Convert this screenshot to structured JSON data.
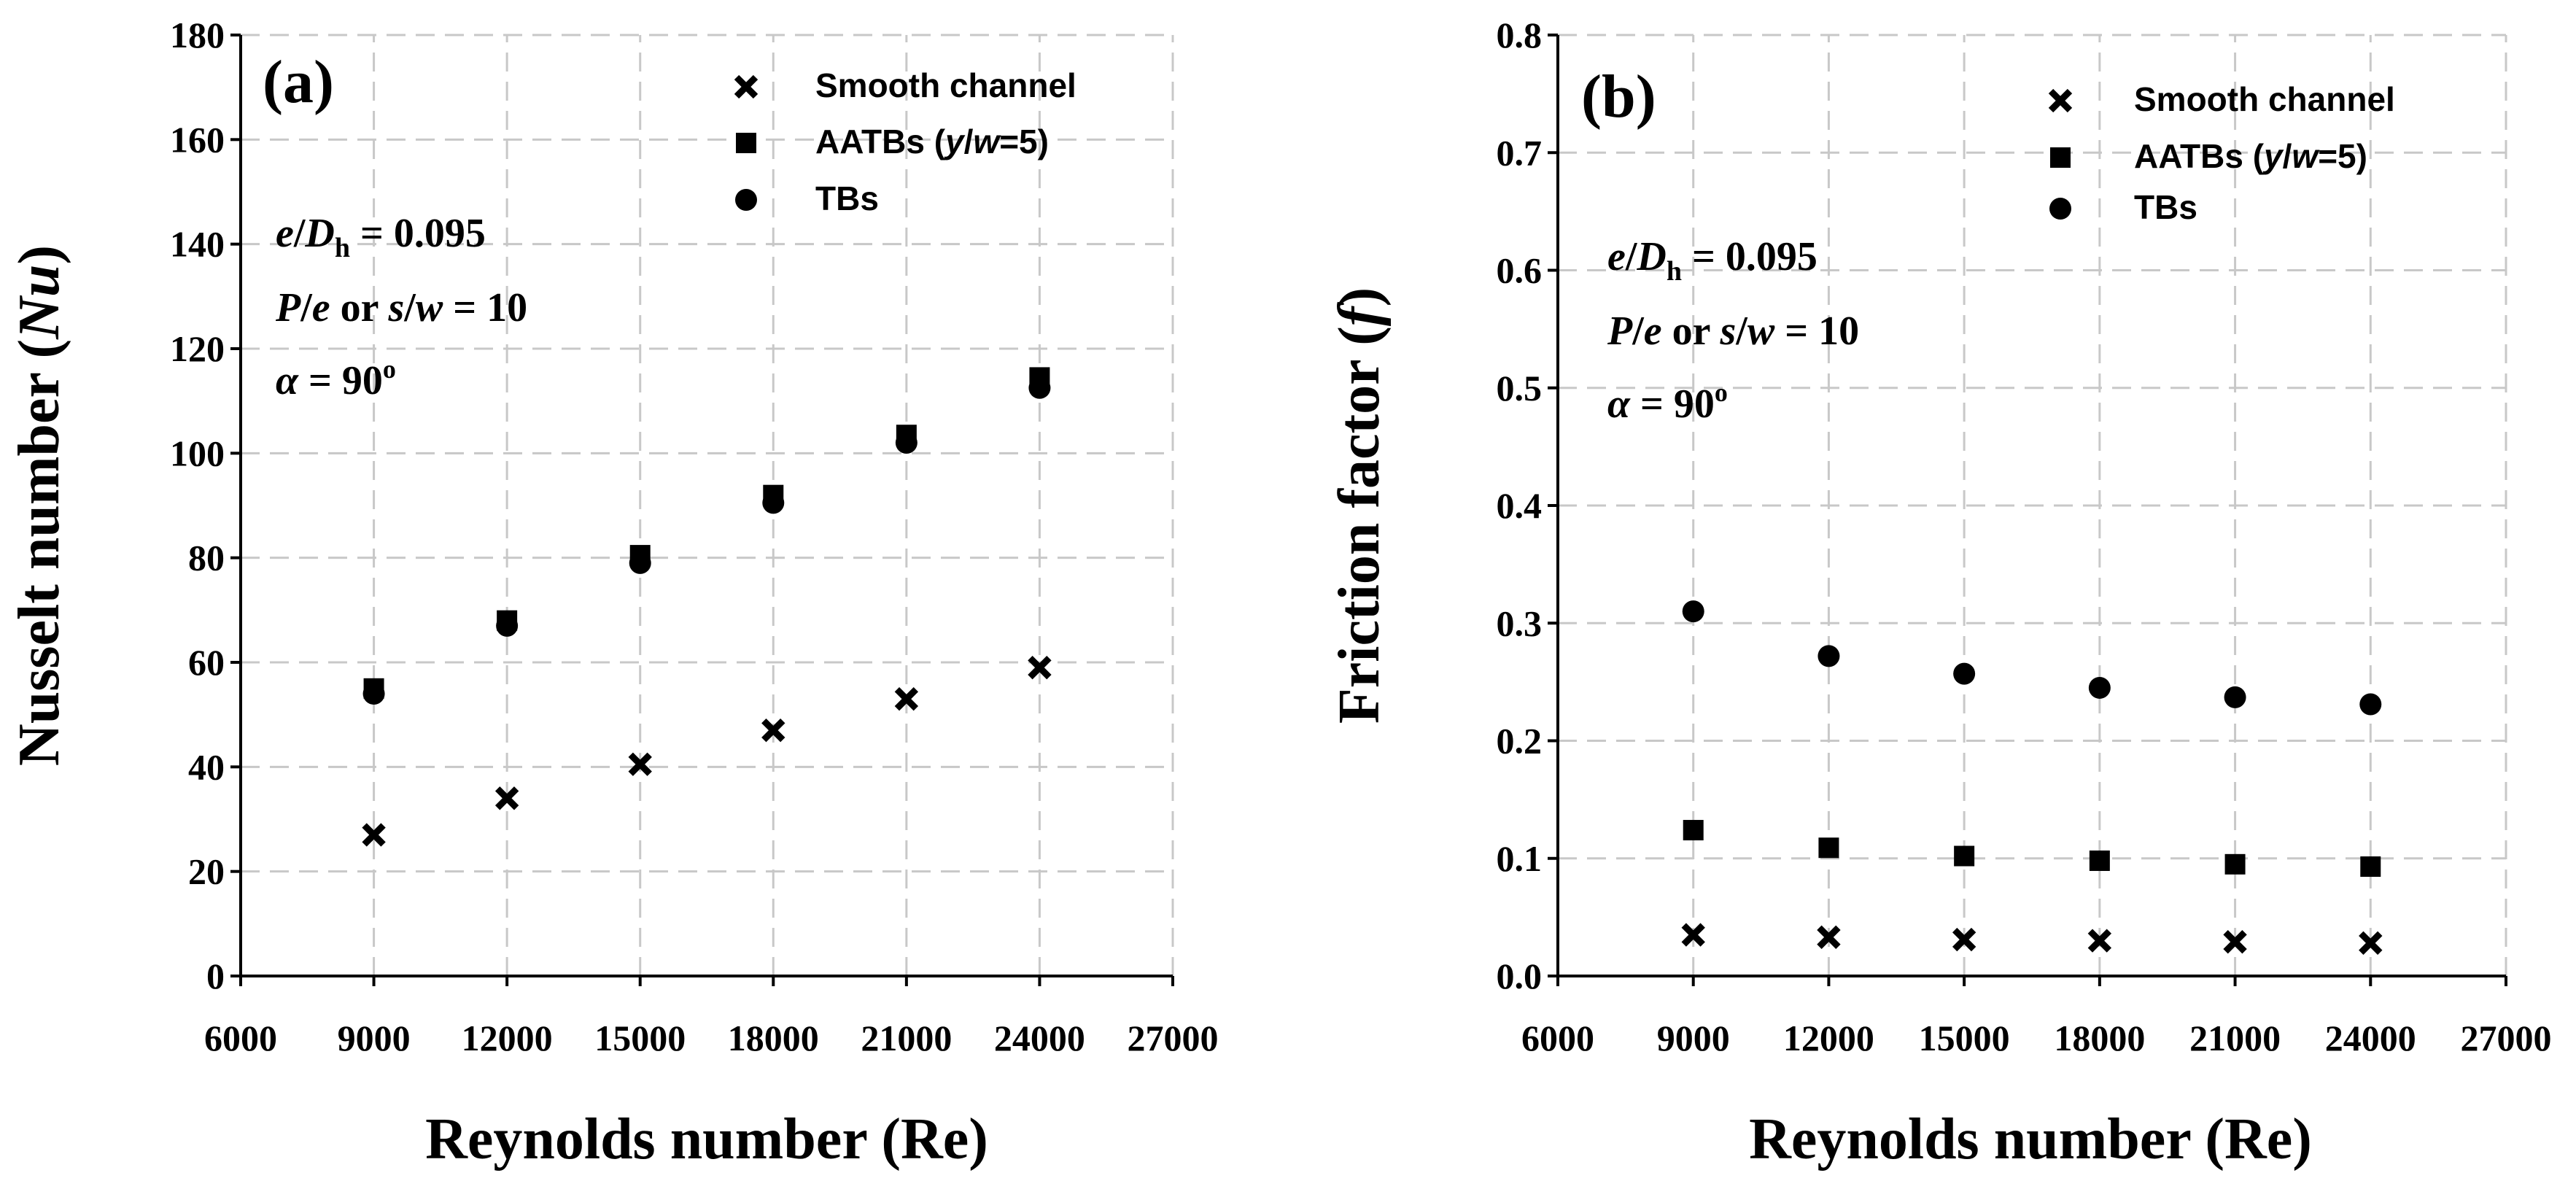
{
  "chart_data": [
    {
      "type": "scatter",
      "panel_label": "(a)",
      "xlabel": "Reynolds number (Re)",
      "ylabel": "Nusselt number (Nu)",
      "xlim": [
        6000,
        27000
      ],
      "ylim": [
        0,
        180
      ],
      "xticks": [
        6000,
        9000,
        12000,
        15000,
        18000,
        21000,
        24000,
        27000
      ],
      "yticks": [
        0,
        20,
        40,
        60,
        80,
        100,
        120,
        140,
        160,
        180
      ],
      "x": [
        9000,
        12000,
        15000,
        18000,
        21000,
        24000
      ],
      "series": [
        {
          "name": "Smooth channel",
          "marker": "x",
          "values": [
            27,
            34,
            40.5,
            47,
            53,
            59
          ]
        },
        {
          "name": "AATBs (y/w=5)",
          "marker": "square",
          "values": [
            55,
            68,
            80.5,
            92,
            103.5,
            114.5
          ]
        },
        {
          "name": "TBs",
          "marker": "circle",
          "values": [
            54,
            67,
            79,
            90.5,
            102,
            112.5
          ]
        }
      ],
      "annotations": [
        "e/Dh = 0.095",
        "P/e or s/w = 10",
        "α = 90°"
      ],
      "grid": true
    },
    {
      "type": "scatter",
      "panel_label": "(b)",
      "xlabel": "Reynolds number (Re)",
      "ylabel": "Friction factor (f)",
      "xlim": [
        6000,
        27000
      ],
      "ylim": [
        0,
        0.8
      ],
      "xticks": [
        6000,
        9000,
        12000,
        15000,
        18000,
        21000,
        24000,
        27000
      ],
      "yticks": [
        0.0,
        0.1,
        0.2,
        0.3,
        0.4,
        0.5,
        0.6,
        0.7,
        0.8
      ],
      "x": [
        9000,
        12000,
        15000,
        18000,
        21000,
        24000
      ],
      "series": [
        {
          "name": "Smooth channel",
          "marker": "x",
          "values": [
            0.035,
            0.033,
            0.031,
            0.03,
            0.029,
            0.028
          ]
        },
        {
          "name": "AATBs (y/w=5)",
          "marker": "square",
          "values": [
            0.124,
            0.109,
            0.102,
            0.098,
            0.095,
            0.093
          ]
        },
        {
          "name": "TBs",
          "marker": "circle",
          "values": [
            0.31,
            0.272,
            0.257,
            0.245,
            0.237,
            0.231
          ]
        }
      ],
      "annotations": [
        "e/Dh = 0.095",
        "P/e or s/w = 10",
        "α = 90°"
      ],
      "grid": true
    }
  ]
}
